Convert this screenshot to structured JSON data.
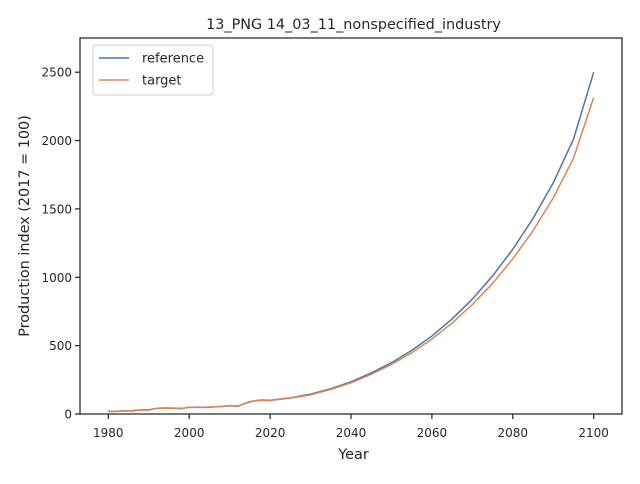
{
  "chart_data": {
    "type": "line",
    "title": "13_PNG 14_03_11_nonspecified_industry",
    "xlabel": "Year",
    "ylabel": "Production index (2017 = 100)",
    "xlim": [
      1973,
      2107
    ],
    "ylim": [
      0,
      2750
    ],
    "xticks": [
      1980,
      2000,
      2020,
      2040,
      2060,
      2080,
      2100
    ],
    "yticks": [
      0,
      500,
      1000,
      1500,
      2000,
      2500
    ],
    "grid": false,
    "legend_position": "top-left",
    "series": [
      {
        "name": "reference",
        "color": "#4c72b0",
        "points": [
          [
            1980,
            18
          ],
          [
            1982,
            20
          ],
          [
            1984,
            22
          ],
          [
            1986,
            25
          ],
          [
            1988,
            30
          ],
          [
            1990,
            30
          ],
          [
            1992,
            42
          ],
          [
            1994,
            44
          ],
          [
            1996,
            42
          ],
          [
            1998,
            40
          ],
          [
            2000,
            48
          ],
          [
            2002,
            50
          ],
          [
            2004,
            48
          ],
          [
            2006,
            52
          ],
          [
            2008,
            55
          ],
          [
            2010,
            60
          ],
          [
            2012,
            58
          ],
          [
            2014,
            80
          ],
          [
            2016,
            95
          ],
          [
            2017,
            100
          ],
          [
            2018,
            102
          ],
          [
            2020,
            100
          ],
          [
            2022,
            108
          ],
          [
            2025,
            118
          ],
          [
            2030,
            145
          ],
          [
            2035,
            185
          ],
          [
            2040,
            235
          ],
          [
            2045,
            300
          ],
          [
            2050,
            375
          ],
          [
            2055,
            465
          ],
          [
            2060,
            570
          ],
          [
            2065,
            695
          ],
          [
            2070,
            840
          ],
          [
            2075,
            1010
          ],
          [
            2080,
            1205
          ],
          [
            2085,
            1430
          ],
          [
            2090,
            1690
          ],
          [
            2095,
            2010
          ],
          [
            2100,
            2500
          ]
        ]
      },
      {
        "name": "target",
        "color": "#dd8452",
        "points": [
          [
            1980,
            20
          ],
          [
            1982,
            18
          ],
          [
            1984,
            24
          ],
          [
            1986,
            22
          ],
          [
            1988,
            30
          ],
          [
            1990,
            28
          ],
          [
            1992,
            42
          ],
          [
            1994,
            43
          ],
          [
            1996,
            44
          ],
          [
            1998,
            40
          ],
          [
            2000,
            50
          ],
          [
            2002,
            48
          ],
          [
            2004,
            50
          ],
          [
            2006,
            52
          ],
          [
            2008,
            56
          ],
          [
            2010,
            62
          ],
          [
            2012,
            55
          ],
          [
            2014,
            82
          ],
          [
            2016,
            96
          ],
          [
            2017,
            100
          ],
          [
            2018,
            100
          ],
          [
            2020,
            98
          ],
          [
            2022,
            106
          ],
          [
            2025,
            116
          ],
          [
            2030,
            140
          ],
          [
            2035,
            180
          ],
          [
            2040,
            228
          ],
          [
            2045,
            290
          ],
          [
            2050,
            362
          ],
          [
            2055,
            448
          ],
          [
            2060,
            548
          ],
          [
            2065,
            665
          ],
          [
            2070,
            800
          ],
          [
            2075,
            955
          ],
          [
            2080,
            1135
          ],
          [
            2085,
            1340
          ],
          [
            2090,
            1580
          ],
          [
            2095,
            1870
          ],
          [
            2100,
            2315
          ]
        ]
      }
    ]
  }
}
